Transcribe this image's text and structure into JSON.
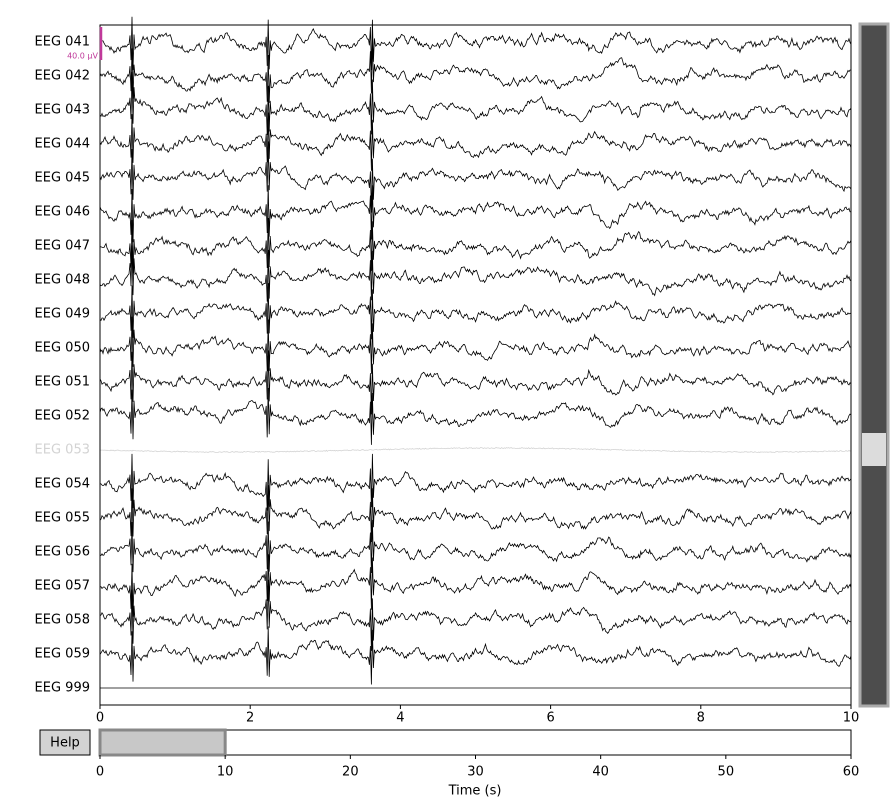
{
  "channels": [
    {
      "name": "EEG 041",
      "color": "#000000"
    },
    {
      "name": "EEG 042",
      "color": "#000000"
    },
    {
      "name": "EEG 043",
      "color": "#000000"
    },
    {
      "name": "EEG 044",
      "color": "#000000"
    },
    {
      "name": "EEG 045",
      "color": "#000000"
    },
    {
      "name": "EEG 046",
      "color": "#000000"
    },
    {
      "name": "EEG 047",
      "color": "#000000"
    },
    {
      "name": "EEG 048",
      "color": "#000000"
    },
    {
      "name": "EEG 049",
      "color": "#000000"
    },
    {
      "name": "EEG 050",
      "color": "#000000"
    },
    {
      "name": "EEG 051",
      "color": "#000000"
    },
    {
      "name": "EEG 052",
      "color": "#000000"
    },
    {
      "name": "EEG 053",
      "color": "#d3d3d3"
    },
    {
      "name": "EEG 054",
      "color": "#000000"
    },
    {
      "name": "EEG 055",
      "color": "#000000"
    },
    {
      "name": "EEG 056",
      "color": "#000000"
    },
    {
      "name": "EEG 057",
      "color": "#000000"
    },
    {
      "name": "EEG 058",
      "color": "#000000"
    },
    {
      "name": "EEG 059",
      "color": "#000000"
    },
    {
      "name": "EEG 999",
      "color": "#808080"
    }
  ],
  "scale_bar_label": "40.0 µV",
  "main_axis": {
    "xlim": [
      0,
      10
    ],
    "xticks": [
      0,
      2,
      4,
      6,
      8,
      10
    ]
  },
  "overview_axis": {
    "xlim": [
      0,
      60
    ],
    "xticks": [
      0,
      10,
      20,
      30,
      40,
      50,
      60
    ],
    "xlabel": "Time (s)"
  },
  "help_button": "Help"
}
